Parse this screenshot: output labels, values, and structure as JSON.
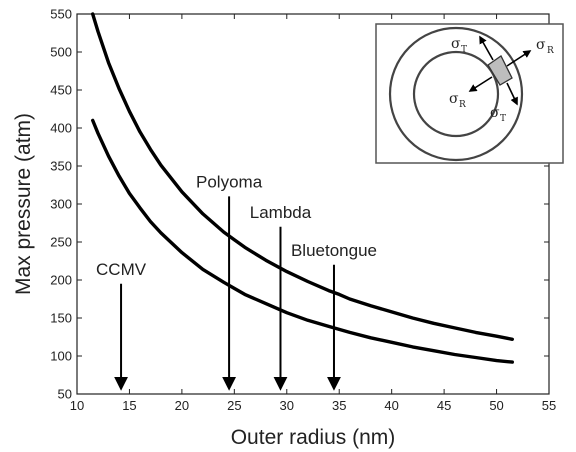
{
  "chart_data": {
    "type": "line",
    "title": "",
    "xlabel": "Outer radius (nm)",
    "ylabel": "Max pressure (atm)",
    "xlim": [
      10,
      55
    ],
    "ylim": [
      50,
      550
    ],
    "x_ticks": [
      10,
      15,
      20,
      25,
      30,
      35,
      40,
      45,
      50,
      55
    ],
    "y_ticks": [
      50,
      100,
      150,
      200,
      250,
      300,
      350,
      400,
      450,
      500,
      550
    ],
    "grid": false,
    "legend": "none",
    "series": [
      {
        "x": [
          11.5,
          12,
          13,
          14,
          15,
          16,
          17,
          18,
          20,
          22,
          24,
          25,
          26,
          28,
          30,
          32,
          34,
          35,
          36,
          38,
          40,
          42,
          44,
          46,
          48,
          50,
          51.5
        ],
        "values": [
          550,
          527,
          486,
          452,
          422,
          395,
          372,
          351,
          316,
          287,
          263,
          253,
          243,
          226,
          211,
          198,
          186,
          181,
          175,
          166,
          158,
          150,
          143,
          137,
          131,
          126,
          122
        ]
      },
      {
        "x": [
          11.5,
          12,
          13,
          14,
          15,
          16,
          17,
          18,
          20,
          22,
          24,
          25,
          26,
          28,
          30,
          32,
          34,
          35,
          36,
          38,
          40,
          42,
          44,
          46,
          48,
          50,
          51.5
        ],
        "values": [
          410,
          393,
          363,
          337,
          314,
          295,
          277,
          262,
          236,
          214,
          197,
          189,
          181,
          169,
          157,
          147,
          139,
          135,
          131,
          124,
          118,
          112,
          107,
          102,
          98,
          94,
          92
        ]
      }
    ],
    "annotations": [
      {
        "text": "CCMV",
        "x": 14.2,
        "tail_y": 195,
        "head_y": 50
      },
      {
        "text": "Polyoma",
        "x": 24.5,
        "tail_y": 310,
        "head_y": 50
      },
      {
        "text": "Lambda",
        "x": 29.4,
        "tail_y": 270,
        "head_y": 50
      },
      {
        "text": "Bluetongue",
        "x": 34.5,
        "tail_y": 220,
        "head_y": 50
      }
    ],
    "inset": {
      "labels": [
        {
          "main": "σ",
          "sub": "T"
        },
        {
          "main": "σ",
          "sub": "R"
        },
        {
          "main": "σ",
          "sub": "R"
        },
        {
          "main": "σ",
          "sub": "T"
        }
      ]
    },
    "colors": {
      "curve": "#000000",
      "axis": "#222222",
      "inset_border": "#555555",
      "inset_shell": "#444444",
      "inset_patch": "#bdbdbd"
    }
  }
}
